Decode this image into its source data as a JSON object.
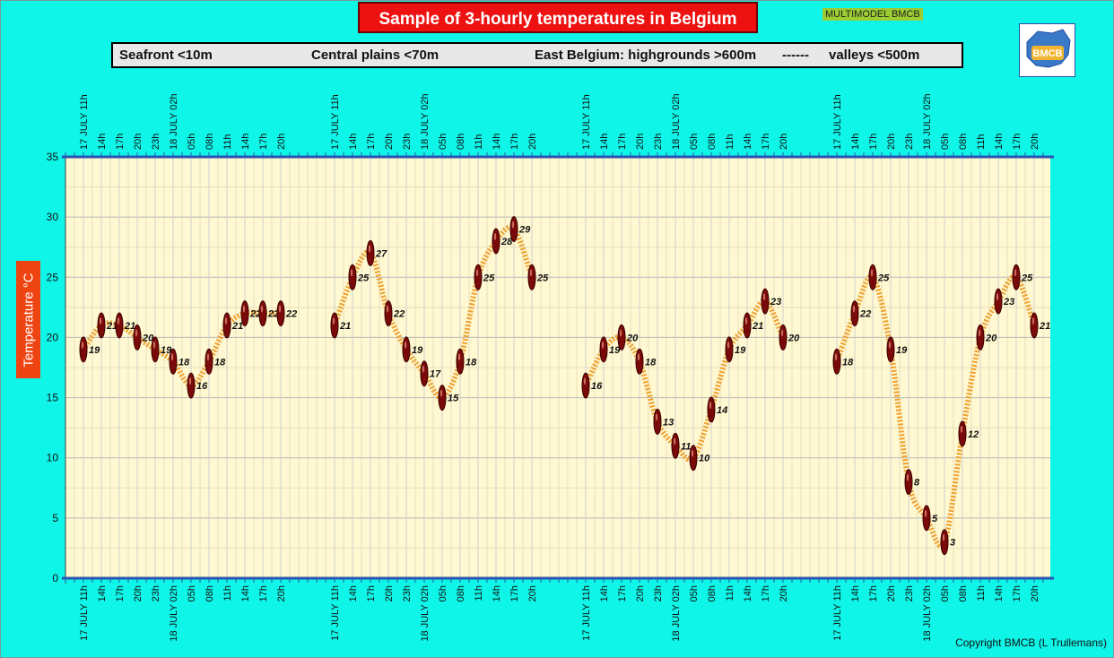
{
  "title": "Sample of 3-hourly temperatures in Belgium",
  "badge": "MULTIMODEL BMCB",
  "legend": {
    "seafront": "Seafront <10m",
    "central": "Central plains <70m",
    "east": "East Belgium: highgrounds >600m",
    "sep": "------",
    "valleys": "valleys <500m"
  },
  "logo_text": "BMCB",
  "copyright": "Copyright BMCB (L Trullemans)",
  "colors": {
    "background": "#0ff5e8",
    "plot": "#fff8d0",
    "line": "#f0a030",
    "marker": "#7a0a0a",
    "title": "#ee1111"
  },
  "chart_data": {
    "type": "line",
    "ylabel": "Temperature  °C",
    "ylim": [
      0,
      35
    ],
    "yticks": [
      0,
      5,
      10,
      15,
      20,
      25,
      30,
      35
    ],
    "grid": true,
    "x_tick_labels": [
      "17 JULY 11h",
      "14h",
      "17h",
      "20h",
      "23h",
      "18 JULY 02h",
      "05h",
      "08h",
      "11h",
      "14h",
      "17h",
      "20h"
    ],
    "series": [
      {
        "name": "Seafront <10m",
        "values": [
          19,
          21,
          21,
          20,
          19,
          18,
          16,
          18,
          21,
          22,
          22,
          22
        ]
      },
      {
        "name": "Central plains <70m",
        "values": [
          21,
          25,
          27,
          22,
          19,
          17,
          15,
          18,
          25,
          28,
          29,
          25
        ]
      },
      {
        "name": "East Belgium: highgrounds >600m",
        "values": [
          16,
          19,
          20,
          18,
          13,
          11,
          10,
          14,
          19,
          21,
          23,
          20
        ]
      },
      {
        "name": "valleys <500m",
        "values": [
          18,
          22,
          25,
          19,
          8,
          5,
          3,
          12,
          20,
          23,
          25,
          21
        ]
      }
    ]
  }
}
